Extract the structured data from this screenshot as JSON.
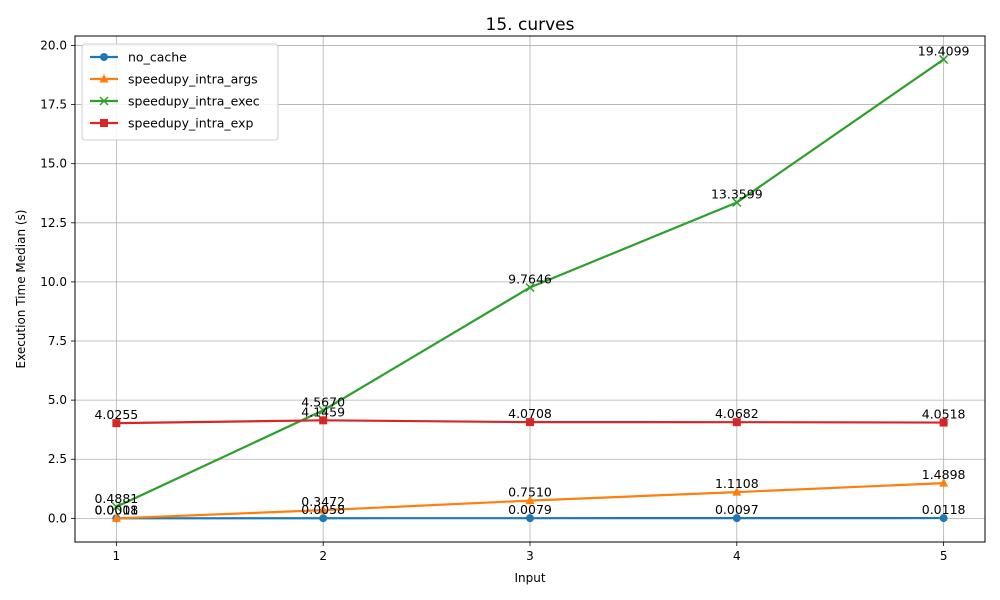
{
  "chart_data": {
    "type": "line",
    "title": "15. curves",
    "xlabel": "Input",
    "ylabel": "Execution Time Median (s)",
    "x": [
      1,
      2,
      3,
      4,
      5
    ],
    "xticks": [
      "1",
      "2",
      "3",
      "4",
      "5"
    ],
    "yticks": [
      "0.0",
      "2.5",
      "5.0",
      "7.5",
      "10.0",
      "12.5",
      "15.0",
      "17.5",
      "20.0"
    ],
    "ylim": [
      -1.0,
      20.4
    ],
    "grid": true,
    "legend_position": "top-left",
    "series": [
      {
        "name": "no_cache",
        "color": "#1f77b4",
        "marker": "circle",
        "values": [
          0.0018,
          0.0058,
          0.0079,
          0.0097,
          0.0118
        ],
        "labels": [
          "0.0018",
          "0.0058",
          "0.0079",
          "0.0097",
          "0.0118"
        ]
      },
      {
        "name": "speedupy_intra_args",
        "color": "#ff7f0e",
        "marker": "triangle",
        "values": [
          0.0001,
          0.3472,
          0.751,
          1.1108,
          1.4898
        ],
        "labels": [
          "0.0001",
          "0.3472",
          "0.7510",
          "1.1108",
          "1.4898"
        ]
      },
      {
        "name": "speedupy_intra_exec",
        "color": "#2ca02c",
        "marker": "x",
        "values": [
          0.4881,
          4.567,
          9.7646,
          13.3599,
          19.4099
        ],
        "labels": [
          "0.4881",
          "4.5670",
          "9.7646",
          "13.3599",
          "19.4099"
        ]
      },
      {
        "name": "speedupy_intra_exp",
        "color": "#d62728",
        "marker": "square",
        "values": [
          4.0255,
          4.1459,
          4.0708,
          4.0682,
          4.0518
        ],
        "labels": [
          "4.0255",
          "4.1459",
          "4.0708",
          "4.0682",
          "4.0518"
        ]
      }
    ]
  }
}
